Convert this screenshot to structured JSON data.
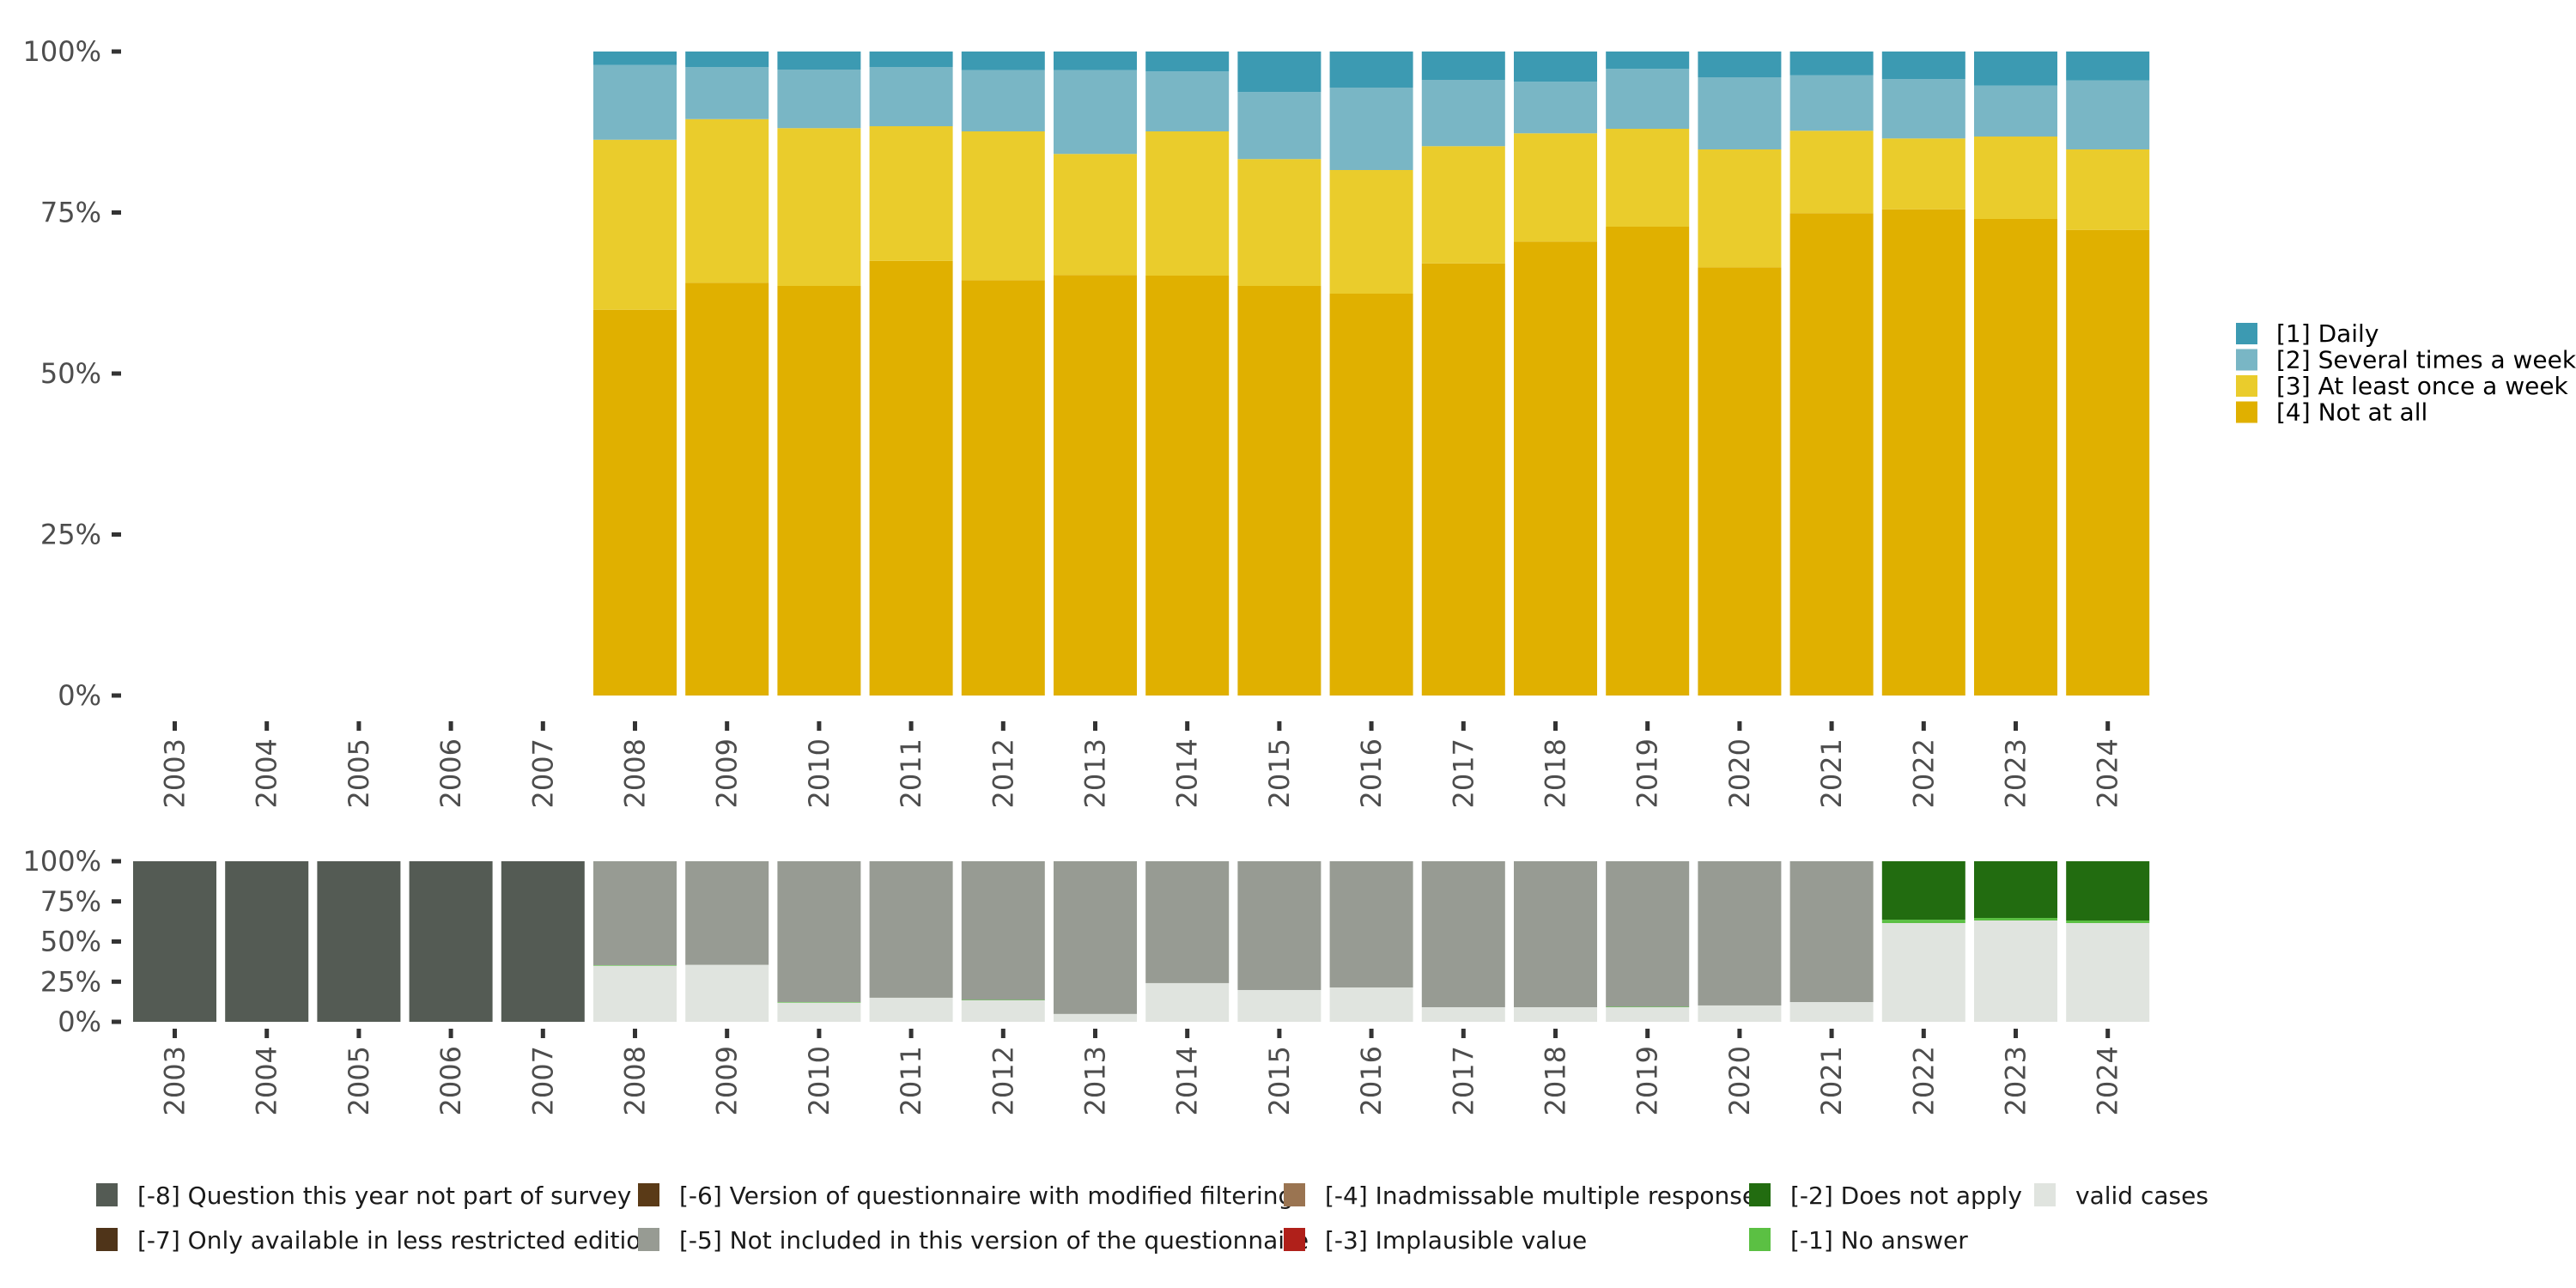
{
  "chart_data": [
    {
      "type": "bar",
      "stacked": true,
      "percent": true,
      "title": "",
      "xlabel": "",
      "ylabel": "",
      "ylim": [
        0,
        100
      ],
      "yticks": [
        "0%",
        "25%",
        "50%",
        "75%",
        "100%"
      ],
      "categories": [
        "2003",
        "2004",
        "2005",
        "2006",
        "2007",
        "2008",
        "2009",
        "2010",
        "2011",
        "2012",
        "2013",
        "2014",
        "2015",
        "2016",
        "2017",
        "2018",
        "2019",
        "2020",
        "2021",
        "2022",
        "2023",
        "2024"
      ],
      "legend_position": "right",
      "series": [
        {
          "name": "[4] Not at all",
          "color": "#E0B000",
          "values": [
            null,
            null,
            null,
            null,
            null,
            59.9,
            64.1,
            63.6,
            67.5,
            64.5,
            65.3,
            65.2,
            63.6,
            62.4,
            67.1,
            70.5,
            72.8,
            66.5,
            74.9,
            75.5,
            74.0,
            72.3
          ]
        },
        {
          "name": "[3] At least once a week",
          "color": "#EACC2C",
          "values": [
            null,
            null,
            null,
            null,
            null,
            26.4,
            25.4,
            24.5,
            20.9,
            23.1,
            18.8,
            22.4,
            19.7,
            19.2,
            18.2,
            16.8,
            15.2,
            18.3,
            12.8,
            11.0,
            12.8,
            12.5
          ]
        },
        {
          "name": "[2] Several times a week",
          "color": "#79B6C5",
          "values": [
            null,
            null,
            null,
            null,
            null,
            11.6,
            8.1,
            9.1,
            9.2,
            9.5,
            13.0,
            9.3,
            10.4,
            12.8,
            10.3,
            8.0,
            9.3,
            11.2,
            8.6,
            9.2,
            7.9,
            10.7
          ]
        },
        {
          "name": "[1] Daily",
          "color": "#3C9AB2",
          "values": [
            null,
            null,
            null,
            null,
            null,
            2.1,
            2.4,
            2.8,
            2.4,
            2.9,
            2.9,
            3.1,
            6.3,
            5.6,
            4.4,
            4.7,
            2.7,
            4.0,
            3.7,
            4.3,
            5.3,
            4.5
          ]
        }
      ],
      "legend": [
        "[1] Daily",
        "[2] Several times a week",
        "[3] At least once a week",
        "[4] Not at all"
      ]
    },
    {
      "type": "bar",
      "stacked": true,
      "percent": true,
      "title": "",
      "xlabel": "",
      "ylabel": "",
      "ylim": [
        0,
        100
      ],
      "yticks": [
        "0%",
        "25%",
        "50%",
        "75%",
        "100%"
      ],
      "categories": [
        "2003",
        "2004",
        "2005",
        "2006",
        "2007",
        "2008",
        "2009",
        "2010",
        "2011",
        "2012",
        "2013",
        "2014",
        "2015",
        "2016",
        "2017",
        "2018",
        "2019",
        "2020",
        "2021",
        "2022",
        "2023",
        "2024"
      ],
      "legend_position": "bottom",
      "series": [
        {
          "name": "valid cases",
          "color": "#E0E4DF",
          "values": [
            0,
            0,
            0,
            0,
            0,
            35.0,
            35.5,
            12.0,
            15.0,
            13.5,
            4.9,
            24.1,
            19.8,
            21.4,
            9.1,
            9.1,
            9.2,
            10.2,
            12.3,
            61.5,
            63.1,
            61.5
          ]
        },
        {
          "name": "[-1] No answer",
          "color": "#5BC043",
          "values": [
            0,
            0,
            0,
            0,
            0,
            0.3,
            0,
            0.3,
            0,
            0.2,
            0,
            0,
            0,
            0,
            0,
            0,
            0.2,
            0,
            0,
            2.1,
            1.6,
            1.6
          ]
        },
        {
          "name": "[-2] Does not apply",
          "color": "#226C10",
          "values": [
            0,
            0,
            0,
            0,
            0,
            0,
            0,
            0,
            0,
            0,
            0,
            0,
            0,
            0,
            0,
            0,
            0,
            0,
            0,
            36.4,
            35.3,
            36.9
          ]
        },
        {
          "name": "[-5] Not included in this version of the questionnaire",
          "color": "#979B93",
          "values": [
            0,
            0,
            0,
            0,
            0,
            64.7,
            64.5,
            87.7,
            85.0,
            86.3,
            95.1,
            75.9,
            80.2,
            78.6,
            90.9,
            90.9,
            90.6,
            89.8,
            87.7,
            0,
            0,
            0
          ]
        },
        {
          "name": "[-8] Question this year not part of survey",
          "color": "#545B54",
          "values": [
            100,
            100,
            100,
            100,
            100,
            0,
            0,
            0,
            0,
            0,
            0,
            0,
            0,
            0,
            0,
            0,
            0,
            0,
            0,
            0,
            0,
            0
          ]
        }
      ],
      "legend": [
        {
          "label": "[-8] Question this year not part of survey",
          "color": "#545B54"
        },
        {
          "label": "[-7] Only available in less restricted edition",
          "color": "#4F3419"
        },
        {
          "label": "[-6] Version of questionnaire with modified filtering",
          "color": "#5A3A17"
        },
        {
          "label": "[-5] Not included in this version of the questionnaire",
          "color": "#979B93"
        },
        {
          "label": "[-4] Inadmissable multiple response",
          "color": "#9A7451"
        },
        {
          "label": "[-3] Implausible value",
          "color": "#B0201A"
        },
        {
          "label": "[-2] Does not apply",
          "color": "#226C10"
        },
        {
          "label": "[-1] No answer",
          "color": "#5BC043"
        },
        {
          "label": "valid cases",
          "color": "#E0E4DF"
        }
      ]
    }
  ]
}
